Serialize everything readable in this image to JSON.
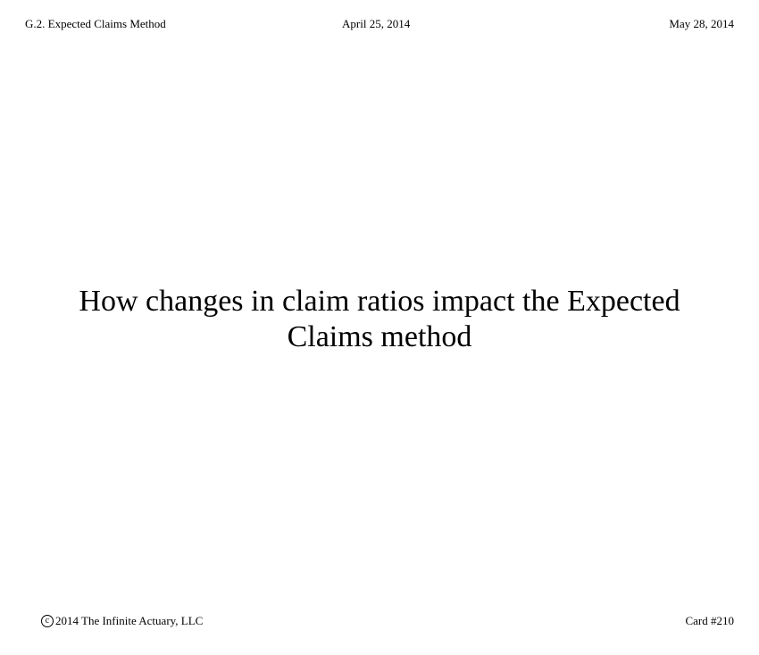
{
  "header": {
    "section": "G.2. Expected Claims Method",
    "date_created": "April 25, 2014",
    "date_revised": "May 28, 2014"
  },
  "card": {
    "title_line_1": "How changes in claim ratios impact the Expected",
    "title_line_2": "Claims method"
  },
  "footer": {
    "copyright_icon": "copyright-icon",
    "copyright_text": "2014 The Infinite Actuary, LLC",
    "card_number": "Card #210"
  }
}
